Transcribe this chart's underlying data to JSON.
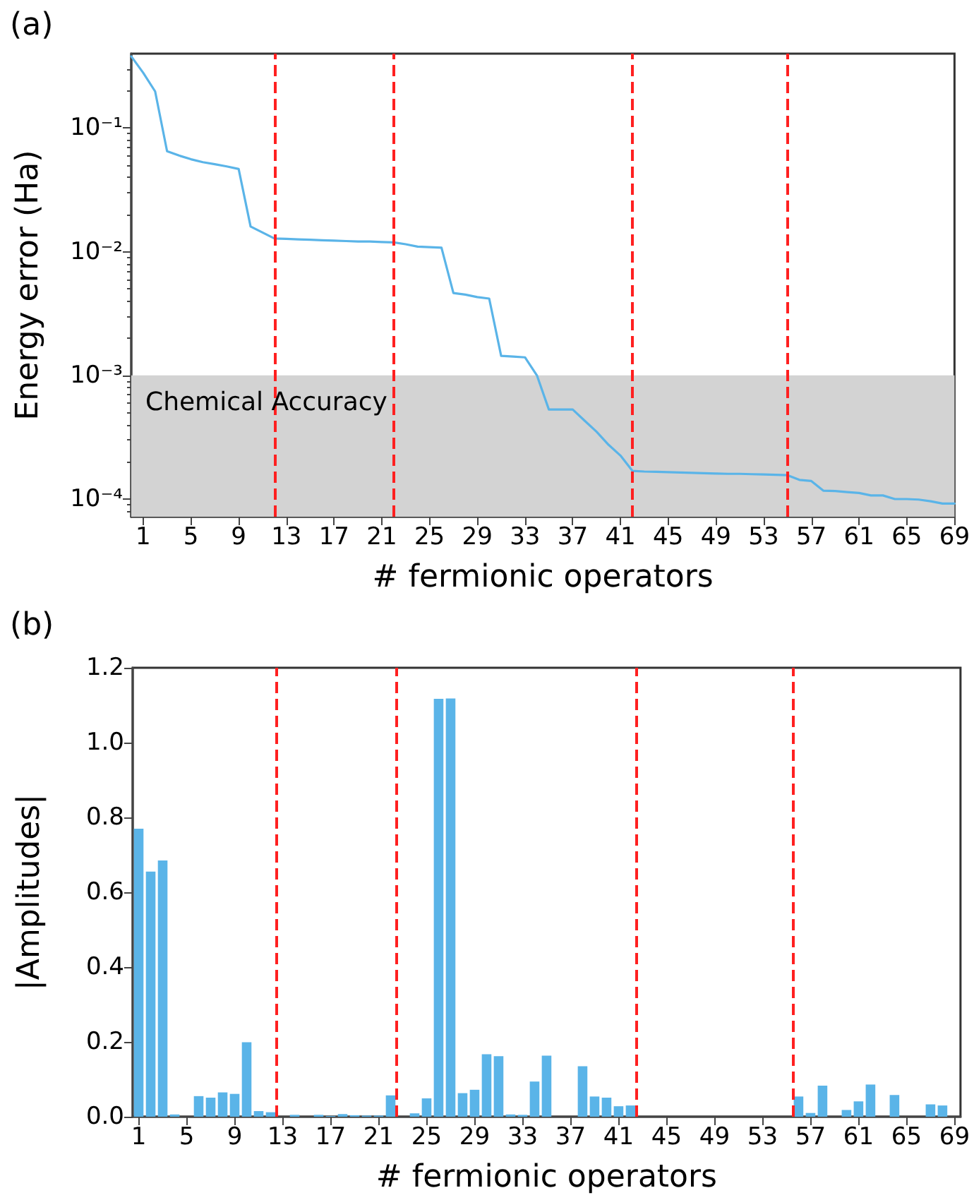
{
  "chart_data": [
    {
      "type": "line",
      "title": "(a)",
      "xlabel": "# fermionic operators",
      "ylabel": "Energy error (Ha)",
      "log": "y",
      "marker": "none",
      "grid": false,
      "x": [
        0,
        1,
        2,
        3,
        4,
        5,
        6,
        7,
        8,
        9,
        10,
        11,
        12,
        13,
        14,
        15,
        16,
        17,
        18,
        19,
        20,
        21,
        22,
        23,
        24,
        25,
        26,
        27,
        28,
        29,
        30,
        31,
        32,
        33,
        34,
        35,
        36,
        37,
        38,
        39,
        40,
        41,
        42,
        43,
        44,
        45,
        46,
        47,
        48,
        49,
        50,
        51,
        52,
        53,
        54,
        55,
        56,
        57,
        58,
        59,
        60,
        61,
        62,
        63,
        64,
        65,
        66,
        67,
        68,
        69
      ],
      "series": [
        {
          "color": "#5ab4e8",
          "values": [
            0.38,
            0.28,
            0.198,
            0.065,
            0.06,
            0.056,
            0.053,
            0.051,
            0.049,
            0.0467,
            0.016,
            0.0143,
            0.0128,
            0.0127,
            0.0126,
            0.0125,
            0.0124,
            0.0123,
            0.0122,
            0.0121,
            0.0121,
            0.012,
            0.0119,
            0.0115,
            0.011,
            0.0109,
            0.0108,
            0.00464,
            0.0045,
            0.0043,
            0.00418,
            0.00144,
            0.00142,
            0.0014,
            0.001,
            0.00053,
            0.00053,
            0.00053,
            0.00043,
            0.00035,
            0.000275,
            0.000225,
            0.000169,
            0.000167,
            0.000166,
            0.000165,
            0.000164,
            0.000163,
            0.000162,
            0.000161,
            0.00016,
            0.00016,
            0.000159,
            0.000158,
            0.000157,
            0.000156,
            0.000143,
            0.00014,
            0.000117,
            0.000116,
            0.000114,
            0.000112,
            0.000107,
            0.000107,
            0.0001,
            0.0001,
            9.9e-05,
            9.6e-05,
            9.2e-05,
            9.2e-05
          ]
        }
      ],
      "xlim": [
        0,
        69
      ],
      "xticks": [
        1,
        5,
        9,
        13,
        17,
        21,
        25,
        29,
        33,
        37,
        41,
        45,
        49,
        53,
        57,
        61,
        65,
        69
      ],
      "ylim": [
        7.2e-05,
        0.4
      ],
      "yticks": [
        {
          "value": 0.0001,
          "label": "10⁻⁴"
        },
        {
          "value": 0.001,
          "label": "10⁻³"
        },
        {
          "value": 0.01,
          "label": "10⁻²"
        },
        {
          "value": 0.1,
          "label": "10⁻¹"
        }
      ],
      "bands": [
        {
          "axis": "y",
          "from": 7.2e-05,
          "to": 0.001,
          "label": "Chemical Accuracy",
          "color": "#d3d3d3"
        }
      ],
      "ref_lines": [
        {
          "axis": "x",
          "value": 12,
          "color": "#ff2020",
          "line_style": "dashed"
        },
        {
          "axis": "x",
          "value": 22,
          "color": "#ff2020",
          "line_style": "dashed"
        },
        {
          "axis": "x",
          "value": 42,
          "color": "#ff2020",
          "line_style": "dashed"
        },
        {
          "axis": "x",
          "value": 55,
          "color": "#ff2020",
          "line_style": "dashed"
        }
      ]
    },
    {
      "type": "bar",
      "title": "(b)",
      "xlabel": "# fermionic operators",
      "ylabel": "|Amplitudes|",
      "grid": false,
      "x": [
        1,
        2,
        3,
        4,
        5,
        6,
        7,
        8,
        9,
        10,
        11,
        12,
        13,
        14,
        15,
        16,
        17,
        18,
        19,
        20,
        21,
        22,
        23,
        24,
        25,
        26,
        27,
        28,
        29,
        30,
        31,
        32,
        33,
        34,
        35,
        36,
        37,
        38,
        39,
        40,
        41,
        42,
        43,
        44,
        45,
        46,
        47,
        48,
        49,
        50,
        51,
        52,
        53,
        54,
        55,
        56,
        57,
        58,
        59,
        60,
        61,
        62,
        63,
        64,
        65,
        66,
        67,
        68
      ],
      "series": [
        {
          "color": "#5ab4e8",
          "values": [
            0.77,
            0.655,
            0.685,
            0.006,
            0,
            0.055,
            0.051,
            0.065,
            0.061,
            0.199,
            0.015,
            0.012,
            0,
            0.005,
            0,
            0.005,
            0.002,
            0.007,
            0.004,
            0.003,
            0.003,
            0.057,
            0,
            0.009,
            0.049,
            1.117,
            1.118,
            0.063,
            0.072,
            0.167,
            0.162,
            0.006,
            0.005,
            0.094,
            0.163,
            0,
            0,
            0.135,
            0.054,
            0.051,
            0.028,
            0.03,
            0,
            0,
            0,
            0,
            0,
            0,
            0,
            0,
            0,
            0,
            0,
            0,
            0,
            0.054,
            0.01,
            0.083,
            0,
            0.018,
            0.041,
            0.086,
            0,
            0.058,
            0,
            0,
            0.033,
            0.03
          ]
        }
      ],
      "xlim": [
        0.5,
        69.5
      ],
      "xticks": [
        1,
        5,
        9,
        13,
        17,
        21,
        25,
        29,
        33,
        37,
        41,
        45,
        49,
        53,
        57,
        61,
        65,
        69
      ],
      "ylim": [
        0,
        1.2
      ],
      "yticks": [
        {
          "value": 0,
          "label": "0.0"
        },
        0.2,
        0.4,
        0.6,
        0.8,
        {
          "value": 1,
          "label": "1.0"
        },
        1.2
      ],
      "ref_lines": [
        {
          "axis": "x",
          "value": 12.5,
          "color": "#ff2020",
          "line_style": "dashed"
        },
        {
          "axis": "x",
          "value": 22.5,
          "color": "#ff2020",
          "line_style": "dashed"
        },
        {
          "axis": "x",
          "value": 42.5,
          "color": "#ff2020",
          "line_style": "dashed"
        },
        {
          "axis": "x",
          "value": 55.5,
          "color": "#ff2020",
          "line_style": "dashed"
        }
      ]
    }
  ]
}
